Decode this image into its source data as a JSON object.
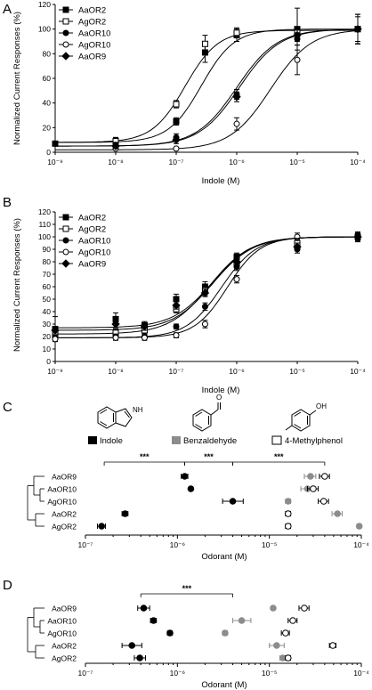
{
  "figure": {
    "panels": [
      "A",
      "B",
      "C",
      "D"
    ],
    "compounds": [
      {
        "name": "Indole",
        "fill": "#000000",
        "stroke": "#000000",
        "swatch_empty": false
      },
      {
        "name": "Benzaldehyde",
        "fill": "#8c8c8c",
        "stroke": "#8c8c8c",
        "swatch_empty": false
      },
      {
        "name": "4-Methylphenol",
        "fill": "#ffffff",
        "stroke": "#000000",
        "swatch_empty": true
      }
    ],
    "structure_icons": [
      "indole-structure-icon",
      "benzaldehyde-structure-icon",
      "methylphenol-structure-icon"
    ],
    "structure_labels": {
      "indole_nh": "NH",
      "benzaldehyde_o": "O",
      "methylphenol_oh": "OH"
    }
  },
  "chart_data": [
    {
      "panel": "A",
      "type": "scatter",
      "xlabel": "Indole (M)",
      "ylabel": "Normalized Current Responses (%)",
      "xscale": "log",
      "xlim": [
        1e-09,
        0.0001
      ],
      "xticks": [
        "10⁻⁹",
        "10⁻⁸",
        "10⁻⁷",
        "10⁻⁶",
        "10⁻⁵",
        "10⁻⁴"
      ],
      "ylim": [
        0,
        120
      ],
      "yticks": [
        "0",
        "20",
        "40",
        "60",
        "80",
        "100",
        "120"
      ],
      "legend_position": "top-left",
      "series": [
        {
          "name": "AaOR2",
          "marker": "filled-square",
          "x": [
            1e-09,
            1e-08,
            1e-07,
            3e-07,
            1e-06,
            1e-05,
            0.0001
          ],
          "y": [
            7,
            9,
            25,
            81,
            95,
            100,
            100
          ],
          "err": [
            1,
            3,
            3,
            8,
            5,
            17,
            12
          ],
          "fit": {
            "bottom": 8,
            "top": 100,
            "ec50": 2.6e-07,
            "hill": 1.6
          }
        },
        {
          "name": "AgOR2",
          "marker": "open-square",
          "x": [
            1e-08,
            1e-07,
            3e-07,
            1e-06,
            1e-05,
            0.0001
          ],
          "y": [
            9,
            39,
            88,
            97,
            97,
            100
          ],
          "err": [
            3,
            3,
            7,
            4,
            4,
            10
          ],
          "fit": {
            "bottom": 8,
            "top": 99,
            "ec50": 1.4e-07,
            "hill": 1.6
          }
        },
        {
          "name": "AaOR10",
          "marker": "filled-circle",
          "x": [
            1e-08,
            1e-07,
            1e-06,
            1e-05,
            0.0001
          ],
          "y": [
            6,
            12,
            47,
            92,
            100
          ],
          "err": [
            2,
            3,
            4,
            5,
            12
          ],
          "fit": {
            "bottom": 5,
            "top": 100,
            "ec50": 1.1e-06,
            "hill": 1.3
          }
        },
        {
          "name": "AgOR10",
          "marker": "open-circle",
          "x": [
            1e-08,
            1e-07,
            1e-06,
            1e-05,
            0.0001
          ],
          "y": [
            3,
            3,
            23,
            75,
            100
          ],
          "err": [
            1,
            1,
            5,
            12,
            12
          ],
          "fit": {
            "bottom": 2,
            "top": 100,
            "ec50": 3.6e-06,
            "hill": 1.3
          }
        },
        {
          "name": "AaOR9",
          "marker": "filled-diamond",
          "x": [
            1e-08,
            1e-07,
            1e-06,
            1e-05,
            0.0001
          ],
          "y": [
            5,
            10,
            45,
            95,
            100
          ],
          "err": [
            2,
            3,
            4,
            5,
            12
          ],
          "fit": {
            "bottom": 5,
            "top": 100,
            "ec50": 1e-06,
            "hill": 1.3
          }
        }
      ]
    },
    {
      "panel": "B",
      "type": "scatter",
      "xlabel": "Indole (M)",
      "ylabel": "Normalized Current Responses (%)",
      "xscale": "log",
      "xlim": [
        1e-09,
        0.0001
      ],
      "xticks": [
        "10⁻⁹",
        "10⁻⁸",
        "10⁻⁷",
        "10⁻⁶",
        "10⁻⁵",
        "10⁻⁴"
      ],
      "ylim": [
        0,
        120
      ],
      "yticks": [
        "0",
        "10",
        "20",
        "30",
        "40",
        "50",
        "60",
        "70",
        "80",
        "90",
        "100",
        "110",
        "120"
      ],
      "legend_position": "top-left",
      "series": [
        {
          "name": "AaOR2",
          "marker": "filled-square",
          "x": [
            1e-09,
            1e-08,
            3e-08,
            1e-07,
            3e-07,
            1e-06,
            1e-05,
            0.0001
          ],
          "y": [
            26,
            34,
            29,
            50,
            60,
            84,
            92,
            100
          ],
          "err": [
            10,
            5,
            3,
            4,
            4,
            3,
            3,
            4
          ],
          "fit": {
            "bottom": 27,
            "top": 100,
            "ec50": 4e-07,
            "hill": 1.3
          }
        },
        {
          "name": "AgOR2",
          "marker": "open-square",
          "x": [
            1e-09,
            1e-08,
            3e-08,
            1e-07,
            3e-07,
            1e-06,
            1e-05,
            0.0001
          ],
          "y": [
            22,
            23,
            25,
            42,
            57,
            78,
            95,
            100
          ],
          "err": [
            3,
            3,
            3,
            3,
            4,
            3,
            3,
            3
          ],
          "fit": {
            "bottom": 22,
            "top": 100,
            "ec50": 3.6e-07,
            "hill": 1.3
          }
        },
        {
          "name": "AaOR10",
          "marker": "filled-circle",
          "x": [
            1e-09,
            1e-08,
            3e-08,
            1e-07,
            3e-07,
            1e-06,
            1e-05,
            0.0001
          ],
          "y": [
            19,
            20,
            20,
            28,
            44,
            76,
            90,
            100
          ],
          "err": [
            2,
            2,
            2,
            2,
            3,
            3,
            3,
            3
          ],
          "fit": {
            "bottom": 19,
            "top": 100,
            "ec50": 5.6e-07,
            "hill": 1.5
          }
        },
        {
          "name": "AgOR10",
          "marker": "open-circle",
          "x": [
            1e-09,
            1e-08,
            3e-08,
            1e-07,
            3e-07,
            1e-06,
            1e-05,
            0.0001
          ],
          "y": [
            18,
            19,
            19,
            21,
            30,
            66,
            100,
            100
          ],
          "err": [
            2,
            2,
            2,
            2,
            3,
            3,
            3,
            3
          ],
          "fit": {
            "bottom": 19,
            "top": 100,
            "ec50": 7e-07,
            "hill": 1.6
          }
        },
        {
          "name": "AaOR9",
          "marker": "filled-diamond",
          "x": [
            1e-09,
            1e-08,
            3e-08,
            1e-07,
            3e-07,
            1e-06,
            1e-05,
            0.0001
          ],
          "y": [
            25,
            30,
            28,
            45,
            55,
            80,
            92,
            100
          ],
          "err": [
            3,
            3,
            3,
            3,
            3,
            3,
            3,
            3
          ],
          "fit": {
            "bottom": 25,
            "top": 100,
            "ec50": 4e-07,
            "hill": 1.3
          }
        }
      ]
    },
    {
      "panel": "C",
      "type": "scatter",
      "xlabel": "Odorant (M)",
      "xscale": "log",
      "xlim": [
        1e-07,
        0.0001
      ],
      "xticks": [
        "10⁻⁷",
        "10⁻⁶",
        "10⁻⁵",
        "10⁻⁴"
      ],
      "rows": [
        "AaOR9",
        "AaOR10",
        "AgOR10",
        "AaOR2",
        "AgOR2"
      ],
      "tree": [
        [
          0,
          1,
          2
        ],
        [
          3,
          4
        ]
      ],
      "values": {
        "Indole": [
          [
            1.2e-06,
            1.1e-06,
            1.3e-06
          ],
          [
            1.4e-06,
            1.35e-06,
            1.45e-06
          ],
          [
            4e-06,
            3.1e-06,
            5.2e-06
          ],
          [
            2.7e-07,
            2.5e-07,
            2.9e-07
          ],
          [
            1.5e-07,
            1.35e-07,
            1.65e-07
          ]
        ],
        "Benzaldehyde": [
          [
            2.8e-05,
            2.4e-05,
            3.2e-05
          ],
          [
            2.6e-05,
            2.2e-05,
            3e-05
          ],
          [
            1.6e-05,
            1.5e-05,
            1.7e-05
          ],
          [
            5.5e-05,
            4.8e-05,
            6.2e-05
          ],
          [
            9.5e-05,
            9e-05,
            0.0001
          ]
        ],
        "4-Methylphenol": [
          [
            4e-05,
            3.5e-05,
            4.5e-05
          ],
          [
            3e-05,
            2.6e-05,
            3.4e-05
          ],
          [
            3.9e-05,
            3.4e-05,
            4.4e-05
          ],
          [
            1.6e-05,
            1.5e-05,
            1.7e-05
          ],
          [
            1.6e-05,
            1.5e-05,
            1.7e-05
          ]
        ]
      },
      "significance": [
        {
          "label": "***",
          "from": 1.6e-07,
          "to": 1.2e-06
        },
        {
          "label": "***",
          "from": 1.2e-06,
          "to": 4e-06
        },
        {
          "label": "***",
          "from": 4e-06,
          "to": 4e-05
        }
      ]
    },
    {
      "panel": "D",
      "type": "scatter",
      "xlabel": "Odorant (M)",
      "xscale": "log",
      "xlim": [
        1e-07,
        0.0001
      ],
      "xticks": [
        "10⁻⁷",
        "10⁻⁶",
        "10⁻⁵",
        "10⁻⁴"
      ],
      "rows": [
        "AaOR9",
        "AaOR10",
        "AgOR10",
        "AaOR2",
        "AgOR2"
      ],
      "tree": [
        [
          0,
          1,
          2
        ],
        [
          3,
          4
        ]
      ],
      "values": {
        "Indole": [
          [
            4.3e-07,
            3.7e-07,
            5e-07
          ],
          [
            5.5e-07,
            5.1e-07,
            5.9e-07
          ],
          [
            8.3e-07,
            7.8e-07,
            8.8e-07
          ],
          [
            3.2e-07,
            2.5e-07,
            4.1e-07
          ],
          [
            3.9e-07,
            3.4e-07,
            4.5e-07
          ]
        ],
        "Benzaldehyde": [
          [
            1.1e-05,
            1.05e-05,
            1.15e-05
          ],
          [
            5e-06,
            4e-06,
            6.3e-06
          ],
          [
            3.3e-06,
            3.1e-06,
            3.5e-06
          ],
          [
            1.2e-05,
            1e-05,
            1.45e-05
          ],
          [
            1.4e-05,
            1.3e-05,
            1.5e-05
          ]
        ],
        "4-Methylphenol": [
          [
            2.4e-05,
            2.1e-05,
            2.7e-05
          ],
          [
            1.8e-05,
            1.6e-05,
            2e-05
          ],
          [
            1.5e-05,
            1.35e-05,
            1.65e-05
          ],
          [
            4.9e-05,
            4.5e-05,
            5.3e-05
          ],
          [
            1.6e-05,
            1.5e-05,
            1.7e-05
          ]
        ]
      },
      "significance": [
        {
          "label": "***",
          "from": 4e-07,
          "to": 4e-06
        }
      ]
    }
  ]
}
